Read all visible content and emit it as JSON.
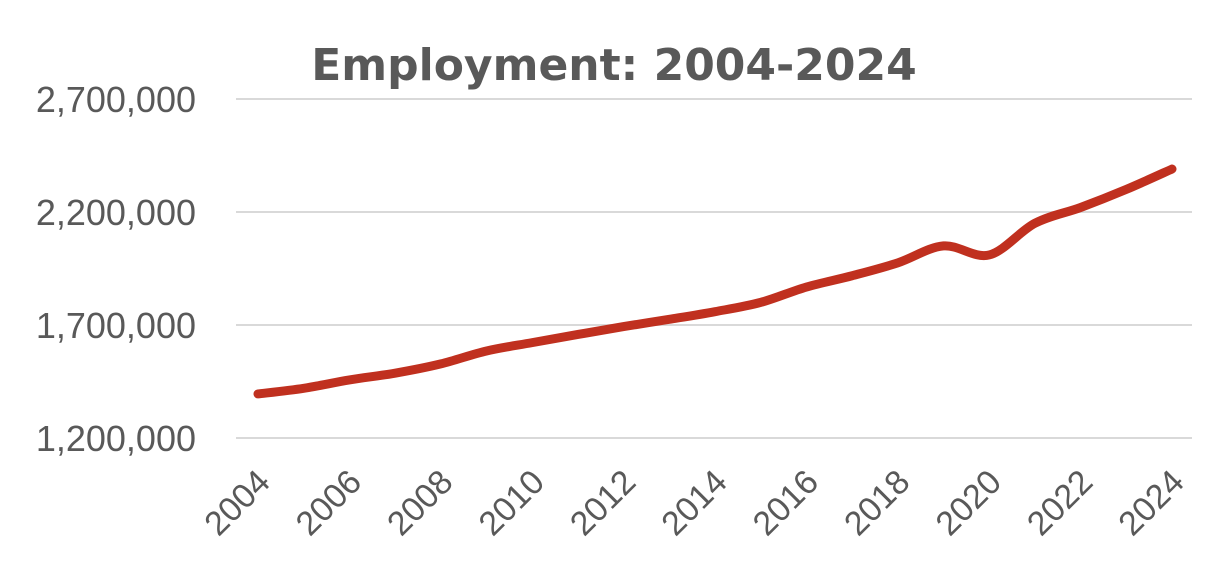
{
  "chart_data": {
    "type": "line",
    "title": "Employment: 2004-2024",
    "xlabel": "",
    "ylabel": "",
    "ylim": [
      1200000,
      2700000
    ],
    "yticks": [
      "1,200,000",
      "1,700,000",
      "2,200,000",
      "2,700,000"
    ],
    "ytick_values": [
      1200000,
      1700000,
      2200000,
      2700000
    ],
    "xticks": [
      "2004",
      "2006",
      "2008",
      "2010",
      "2012",
      "2014",
      "2016",
      "2018",
      "2020",
      "2022",
      "2024"
    ],
    "grid": true,
    "legend": "none",
    "series": [
      {
        "color": "#c0301f",
        "x": [
          2004,
          2005,
          2006,
          2007,
          2008,
          2009,
          2010,
          2011,
          2012,
          2013,
          2014,
          2015,
          2016,
          2017,
          2018,
          2019,
          2020,
          2021,
          2022,
          2023,
          2024
        ],
        "values": [
          1395000,
          1420000,
          1457000,
          1487000,
          1528000,
          1585000,
          1622000,
          1658000,
          1693000,
          1725000,
          1759000,
          1800000,
          1868000,
          1918000,
          1975000,
          2050000,
          2010000,
          2150000,
          2220000,
          2300000,
          2390000
        ]
      }
    ]
  }
}
